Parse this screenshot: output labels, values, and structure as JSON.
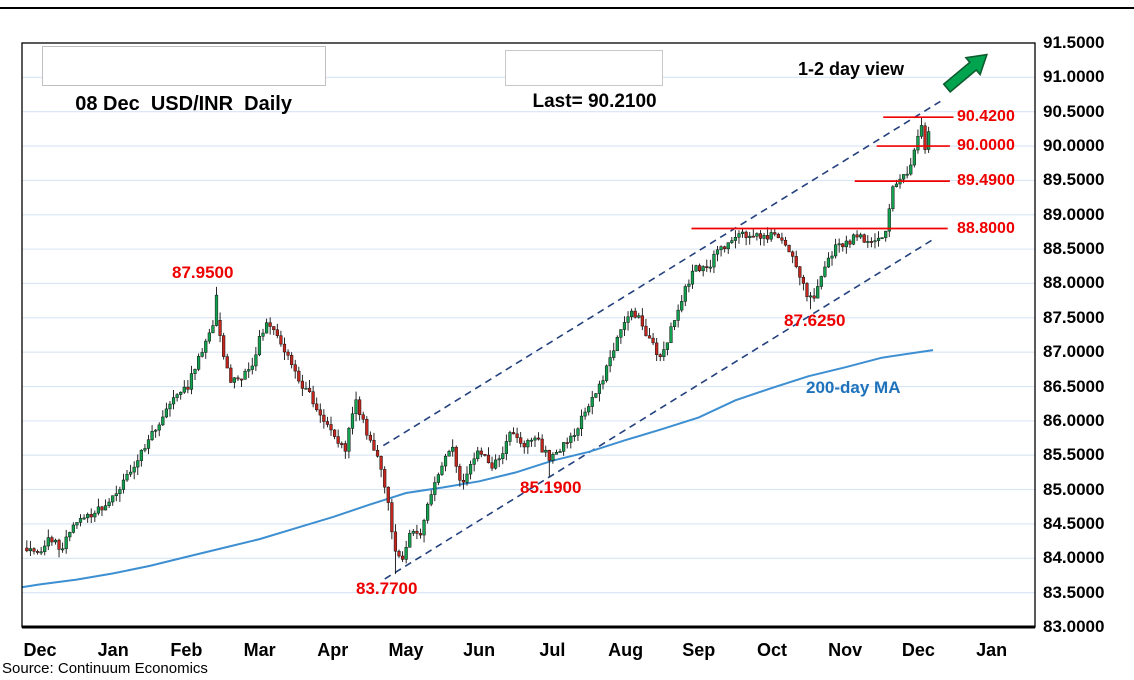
{
  "page": {
    "title_box": "08 Dec  USD/INR  Daily",
    "last_box": "Last= 90.2100",
    "view_label": "1-2 day view",
    "source": "Source: Continuum Economics"
  },
  "colors": {
    "candle_up": "#12a14f",
    "candle_down": "#c4261d",
    "level_line": "#f10000",
    "level_text": "#ee0000",
    "annotation_red": "#ee0000",
    "ma_line": "#3d8fd1",
    "ma_text": "#1d72bb",
    "channel": "#24417e",
    "grid": "#d7e5f4",
    "arrow_fill": "#00a44f",
    "arrow_stroke": "#0d5c2e"
  },
  "axes": {
    "y_labels": [
      {
        "text": "91.5000",
        "v": 91.5
      },
      {
        "text": "91.0000",
        "v": 91.0
      },
      {
        "text": "90.5000",
        "v": 90.5
      },
      {
        "text": "90.0000",
        "v": 90.0
      },
      {
        "text": "89.5000",
        "v": 89.5
      },
      {
        "text": "89.0000",
        "v": 89.0
      },
      {
        "text": "88.5000",
        "v": 88.5
      },
      {
        "text": "88.0000",
        "v": 88.0
      },
      {
        "text": "87.5000",
        "v": 87.5
      },
      {
        "text": "87.0000",
        "v": 87.0
      },
      {
        "text": "86.5000",
        "v": 86.5
      },
      {
        "text": "86.0000",
        "v": 86.0
      },
      {
        "text": "85.5000",
        "v": 85.5
      },
      {
        "text": "85.0000",
        "v": 85.0
      },
      {
        "text": "84.5000",
        "v": 84.5
      },
      {
        "text": "84.0000",
        "v": 84.0
      },
      {
        "text": "83.5000",
        "v": 83.5
      },
      {
        "text": "83.0000",
        "v": 83.0
      }
    ],
    "x_months": [
      "Dec",
      "Jan",
      "Feb",
      "Mar",
      "Apr",
      "May",
      "Jun",
      "Jul",
      "Aug",
      "Sep",
      "Oct",
      "Nov",
      "Dec",
      "Jan"
    ]
  },
  "chart_data": {
    "type": "candlestick",
    "title": "08 Dec USD/INR Daily",
    "instrument": "USD/INR",
    "interval": "Daily",
    "last": 90.21,
    "outlook": "1-2 day view: up (green arrow)",
    "ylim": [
      83.0,
      91.5
    ],
    "y_tick_step": 0.5,
    "grid": true,
    "x_axis_months": [
      "Dec",
      "Jan",
      "Feb",
      "Mar",
      "Apr",
      "May",
      "Jun",
      "Jul",
      "Aug",
      "Sep",
      "Oct",
      "Nov",
      "Dec",
      "Jan"
    ],
    "levels": [
      {
        "label": "90.4200",
        "value": 90.42,
        "t1": 11.52,
        "t2": 12.48
      },
      {
        "label": "90.0000",
        "value": 90.0,
        "t1": 11.43,
        "t2": 12.43
      },
      {
        "label": "89.4900",
        "value": 89.49,
        "t1": 11.13,
        "t2": 12.43
      },
      {
        "label": "88.8000",
        "value": 88.8,
        "t1": 8.9,
        "t2": 12.4
      }
    ],
    "ma200": {
      "label": "200-day MA",
      "points": [
        [
          -0.25,
          83.58
        ],
        [
          0,
          83.62
        ],
        [
          0.5,
          83.69
        ],
        [
          1,
          83.78
        ],
        [
          1.5,
          83.89
        ],
        [
          2,
          84.02
        ],
        [
          2.5,
          84.15
        ],
        [
          3,
          84.28
        ],
        [
          3.5,
          84.44
        ],
        [
          4,
          84.6
        ],
        [
          4.5,
          84.78
        ],
        [
          5,
          84.95
        ],
        [
          5.5,
          85.03
        ],
        [
          6,
          85.12
        ],
        [
          6.5,
          85.25
        ],
        [
          7,
          85.42
        ],
        [
          7.5,
          85.55
        ],
        [
          8,
          85.72
        ],
        [
          8.5,
          85.88
        ],
        [
          9,
          86.05
        ],
        [
          9.5,
          86.3
        ],
        [
          10,
          86.48
        ],
        [
          10.5,
          86.65
        ],
        [
          11,
          86.78
        ],
        [
          11.5,
          86.92
        ],
        [
          12,
          87.0
        ],
        [
          12.2,
          87.03
        ]
      ]
    },
    "channel": {
      "style": "dashed",
      "lines": [
        {
          "name": "upper",
          "t1": 4.69,
          "v1": 85.64,
          "t2": 12.3,
          "v2": 90.65
        },
        {
          "name": "lower",
          "t1": 4.71,
          "v1": 83.7,
          "t2": 12.23,
          "v2": 88.66
        }
      ]
    },
    "annotations": [
      {
        "text": "87.9500",
        "x": 172,
        "y": 263,
        "color": "red"
      },
      {
        "text": "83.7700",
        "x": 356,
        "y": 579,
        "color": "red"
      },
      {
        "text": "85.1900",
        "x": 520,
        "y": 478,
        "color": "red"
      },
      {
        "text": "87.6250",
        "x": 784,
        "y": 311,
        "color": "red"
      },
      {
        "text": "200-day MA",
        "x": 806,
        "y": 378,
        "color": "blue"
      }
    ],
    "candles": {
      "count": 253,
      "t_start": -0.18,
      "t_end": 12.14,
      "close_jitter": 0.13,
      "wick": 0.12,
      "seeds": [
        12.9898,
        78.233,
        37.719
      ],
      "resistance_clamp": {
        "t_from": 9.25,
        "t_to": 11.56,
        "value": 88.8
      },
      "path": [
        [
          -0.18,
          84.15
        ],
        [
          0.0,
          84.05
        ],
        [
          0.15,
          84.3
        ],
        [
          0.3,
          84.15
        ],
        [
          0.5,
          84.55
        ],
        [
          0.7,
          84.65
        ],
        [
          0.9,
          84.8
        ],
        [
          1.05,
          85.0
        ],
        [
          1.2,
          85.2
        ],
        [
          1.4,
          85.55
        ],
        [
          1.6,
          85.95
        ],
        [
          1.8,
          86.3
        ],
        [
          2.0,
          86.45
        ],
        [
          2.15,
          86.85
        ],
        [
          2.3,
          87.25
        ],
        [
          2.42,
          87.5
        ],
        [
          2.52,
          86.9
        ],
        [
          2.62,
          86.55
        ],
        [
          2.75,
          86.6
        ],
        [
          2.9,
          86.85
        ],
        [
          3.05,
          87.35
        ],
        [
          3.15,
          87.4
        ],
        [
          3.3,
          87.1
        ],
        [
          3.45,
          86.8
        ],
        [
          3.6,
          86.5
        ],
        [
          3.75,
          86.25
        ],
        [
          3.9,
          85.95
        ],
        [
          4.05,
          85.75
        ],
        [
          4.18,
          85.6
        ],
        [
          4.3,
          86.3
        ],
        [
          4.42,
          85.95
        ],
        [
          4.55,
          85.6
        ],
        [
          4.68,
          85.3
        ],
        [
          4.78,
          84.6
        ],
        [
          4.87,
          84.05
        ],
        [
          4.95,
          84.0
        ],
        [
          5.05,
          84.35
        ],
        [
          5.2,
          84.4
        ],
        [
          5.35,
          84.95
        ],
        [
          5.5,
          85.35
        ],
        [
          5.62,
          85.7
        ],
        [
          5.75,
          85.0
        ],
        [
          5.88,
          85.35
        ],
        [
          6.0,
          85.6
        ],
        [
          6.15,
          85.3
        ],
        [
          6.3,
          85.45
        ],
        [
          6.45,
          85.85
        ],
        [
          6.6,
          85.6
        ],
        [
          6.75,
          85.8
        ],
        [
          6.88,
          85.55
        ],
        [
          6.98,
          85.45
        ],
        [
          7.1,
          85.6
        ],
        [
          7.3,
          85.85
        ],
        [
          7.5,
          86.2
        ],
        [
          7.65,
          86.5
        ],
        [
          7.8,
          86.95
        ],
        [
          7.95,
          87.35
        ],
        [
          8.08,
          87.55
        ],
        [
          8.2,
          87.45
        ],
        [
          8.35,
          87.1
        ],
        [
          8.5,
          86.95
        ],
        [
          8.65,
          87.4
        ],
        [
          8.8,
          87.9
        ],
        [
          8.95,
          88.25
        ],
        [
          9.1,
          88.2
        ],
        [
          9.25,
          88.45
        ],
        [
          9.45,
          88.65
        ],
        [
          9.6,
          88.72
        ],
        [
          9.8,
          88.68
        ],
        [
          10.0,
          88.72
        ],
        [
          10.15,
          88.65
        ],
        [
          10.3,
          88.3
        ],
        [
          10.45,
          87.9
        ],
        [
          10.55,
          87.75
        ],
        [
          10.7,
          88.25
        ],
        [
          10.85,
          88.5
        ],
        [
          11.0,
          88.6
        ],
        [
          11.2,
          88.68
        ],
        [
          11.4,
          88.6
        ],
        [
          11.56,
          88.72
        ],
        [
          11.63,
          89.4
        ],
        [
          11.72,
          89.45
        ],
        [
          11.82,
          89.55
        ],
        [
          11.9,
          89.8
        ],
        [
          11.98,
          90.15
        ],
        [
          12.04,
          90.28
        ],
        [
          12.09,
          89.98
        ],
        [
          12.14,
          90.21
        ]
      ],
      "pins": [
        {
          "t": 2.42,
          "type": "high",
          "value": 87.95
        },
        {
          "t": 4.87,
          "type": "low",
          "value": 83.77
        },
        {
          "t": 6.98,
          "type": "low",
          "value": 85.19
        },
        {
          "t": 10.52,
          "type": "low",
          "value": 87.625
        },
        {
          "t": 12.02,
          "type": "high",
          "value": 90.42
        }
      ],
      "last_candle": {
        "o": 89.95,
        "h": 90.28,
        "l": 89.9,
        "c": 90.21
      }
    }
  }
}
